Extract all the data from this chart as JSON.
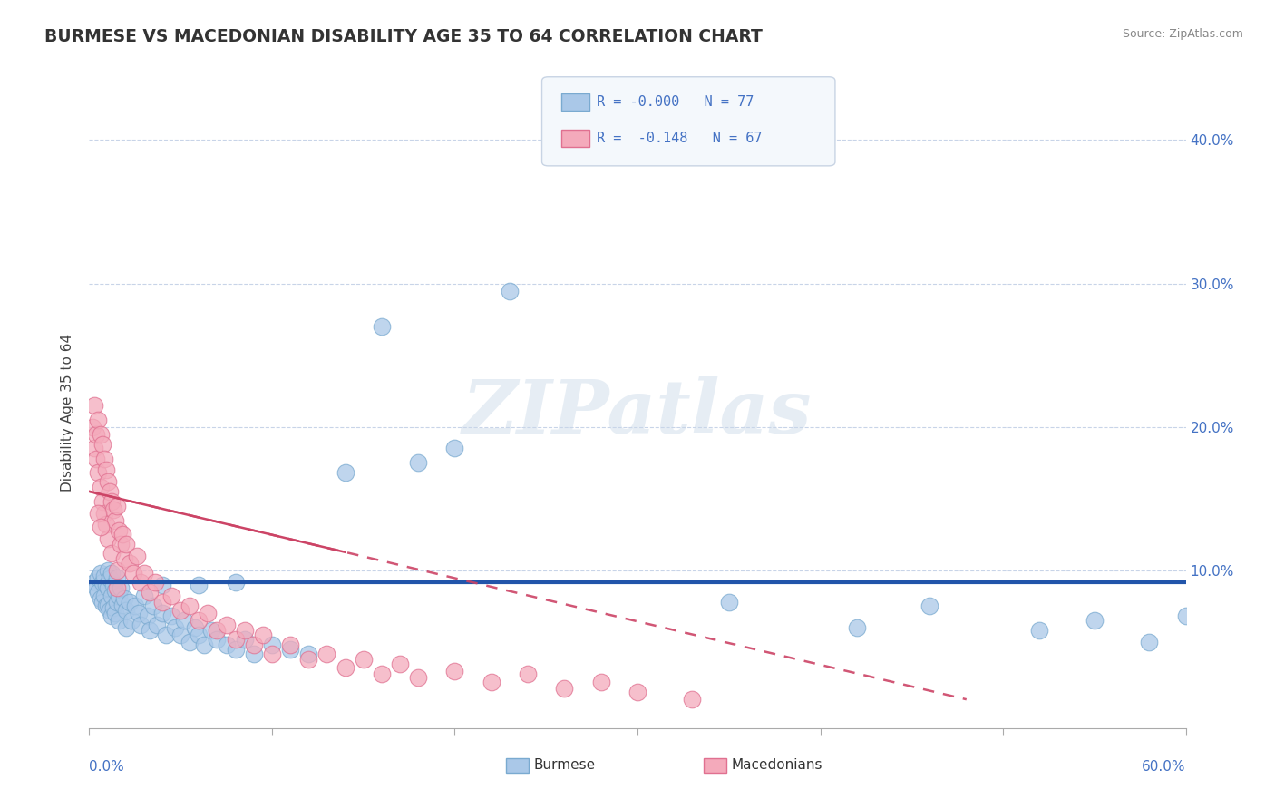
{
  "title": "BURMESE VS MACEDONIAN DISABILITY AGE 35 TO 64 CORRELATION CHART",
  "source": "Source: ZipAtlas.com",
  "ylabel": "Disability Age 35 to 64",
  "yticks": [
    0.0,
    0.1,
    0.2,
    0.3,
    0.4
  ],
  "ytick_labels_right": [
    "",
    "10.0%",
    "20.0%",
    "30.0%",
    "40.0%"
  ],
  "xlim": [
    0.0,
    0.6
  ],
  "ylim": [
    -0.01,
    0.43
  ],
  "burmese_R": "-0.000",
  "burmese_N": "77",
  "macedonian_R": "-0.148",
  "macedonian_N": "67",
  "burmese_color": "#aac8e8",
  "macedonian_color": "#f4aabb",
  "burmese_edge_color": "#7aaad0",
  "macedonian_edge_color": "#e07090",
  "burmese_line_color": "#2255aa",
  "macedonian_line_color": "#cc4466",
  "legend_label_burmese": "Burmese",
  "legend_label_macedonian": "Macedonians",
  "watermark": "ZIPatlas",
  "burmese_x": [
    0.003,
    0.004,
    0.005,
    0.005,
    0.006,
    0.006,
    0.007,
    0.007,
    0.008,
    0.008,
    0.009,
    0.009,
    0.01,
    0.01,
    0.01,
    0.011,
    0.011,
    0.012,
    0.012,
    0.012,
    0.013,
    0.013,
    0.014,
    0.014,
    0.015,
    0.015,
    0.016,
    0.016,
    0.017,
    0.018,
    0.019,
    0.02,
    0.02,
    0.022,
    0.023,
    0.025,
    0.027,
    0.028,
    0.03,
    0.032,
    0.033,
    0.035,
    0.037,
    0.04,
    0.042,
    0.045,
    0.047,
    0.05,
    0.052,
    0.055,
    0.058,
    0.06,
    0.063,
    0.067,
    0.07,
    0.075,
    0.08,
    0.085,
    0.09,
    0.1,
    0.11,
    0.12,
    0.14,
    0.16,
    0.18,
    0.2,
    0.23,
    0.04,
    0.06,
    0.08,
    0.35,
    0.42,
    0.46,
    0.52,
    0.55,
    0.58,
    0.6
  ],
  "burmese_y": [
    0.092,
    0.088,
    0.095,
    0.085,
    0.098,
    0.08,
    0.092,
    0.078,
    0.096,
    0.082,
    0.09,
    0.075,
    0.1,
    0.088,
    0.076,
    0.094,
    0.072,
    0.098,
    0.082,
    0.068,
    0.09,
    0.074,
    0.086,
    0.07,
    0.095,
    0.078,
    0.082,
    0.065,
    0.088,
    0.076,
    0.08,
    0.072,
    0.06,
    0.078,
    0.065,
    0.075,
    0.07,
    0.062,
    0.082,
    0.068,
    0.058,
    0.075,
    0.062,
    0.07,
    0.055,
    0.068,
    0.06,
    0.055,
    0.065,
    0.05,
    0.06,
    0.055,
    0.048,
    0.058,
    0.052,
    0.048,
    0.045,
    0.052,
    0.042,
    0.048,
    0.045,
    0.042,
    0.168,
    0.27,
    0.175,
    0.185,
    0.295,
    0.09,
    0.09,
    0.092,
    0.078,
    0.06,
    0.075,
    0.058,
    0.065,
    0.05,
    0.068
  ],
  "macedonian_x": [
    0.002,
    0.003,
    0.003,
    0.004,
    0.004,
    0.005,
    0.005,
    0.006,
    0.006,
    0.007,
    0.007,
    0.008,
    0.008,
    0.009,
    0.009,
    0.01,
    0.01,
    0.011,
    0.012,
    0.012,
    0.013,
    0.014,
    0.015,
    0.015,
    0.016,
    0.017,
    0.018,
    0.019,
    0.02,
    0.022,
    0.024,
    0.026,
    0.028,
    0.03,
    0.033,
    0.036,
    0.04,
    0.045,
    0.05,
    0.055,
    0.06,
    0.065,
    0.07,
    0.075,
    0.08,
    0.085,
    0.09,
    0.095,
    0.1,
    0.11,
    0.12,
    0.13,
    0.14,
    0.15,
    0.16,
    0.17,
    0.18,
    0.2,
    0.22,
    0.24,
    0.26,
    0.28,
    0.3,
    0.33,
    0.005,
    0.006,
    0.015
  ],
  "macedonian_y": [
    0.2,
    0.185,
    0.215,
    0.195,
    0.178,
    0.205,
    0.168,
    0.195,
    0.158,
    0.188,
    0.148,
    0.178,
    0.14,
    0.17,
    0.132,
    0.162,
    0.122,
    0.155,
    0.148,
    0.112,
    0.142,
    0.135,
    0.145,
    0.1,
    0.128,
    0.118,
    0.125,
    0.108,
    0.118,
    0.105,
    0.098,
    0.11,
    0.092,
    0.098,
    0.085,
    0.092,
    0.078,
    0.082,
    0.072,
    0.075,
    0.065,
    0.07,
    0.058,
    0.062,
    0.052,
    0.058,
    0.048,
    0.055,
    0.042,
    0.048,
    0.038,
    0.042,
    0.032,
    0.038,
    0.028,
    0.035,
    0.025,
    0.03,
    0.022,
    0.028,
    0.018,
    0.022,
    0.015,
    0.01,
    0.14,
    0.13,
    0.088
  ],
  "burmese_line_y": 0.092,
  "mac_line_x0": 0.0,
  "mac_line_x1": 0.48,
  "mac_line_y0": 0.155,
  "mac_line_y1": 0.01
}
